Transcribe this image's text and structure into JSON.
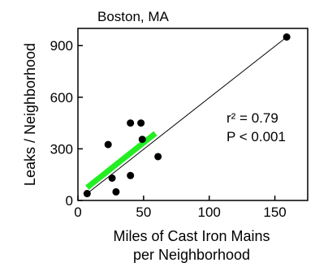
{
  "chart_data": {
    "type": "scatter",
    "title": "Boston, MA",
    "xlabel_lines": [
      "Miles of Cast Iron Mains",
      "per Neighborhood"
    ],
    "ylabel": "Leaks / Neighborhood",
    "xlim": [
      0,
      175
    ],
    "ylim": [
      0,
      1000
    ],
    "x_ticks": [
      0,
      50,
      100,
      150
    ],
    "y_ticks": [
      0,
      300,
      600,
      900
    ],
    "grid": false,
    "points": [
      {
        "x": 7,
        "y": 40
      },
      {
        "x": 23,
        "y": 325
      },
      {
        "x": 26,
        "y": 130
      },
      {
        "x": 29,
        "y": 50
      },
      {
        "x": 40,
        "y": 450
      },
      {
        "x": 40,
        "y": 145
      },
      {
        "x": 48,
        "y": 450
      },
      {
        "x": 49,
        "y": 355
      },
      {
        "x": 61,
        "y": 255
      },
      {
        "x": 159,
        "y": 950
      }
    ],
    "fit_line": {
      "x": [
        7,
        159
      ],
      "y": [
        40,
        950
      ],
      "color": "#000000"
    },
    "highlight_line": {
      "x": [
        7,
        59
      ],
      "y": [
        75,
        390
      ],
      "color": "#22ee22"
    },
    "annotations": [
      "r² = 0.79",
      "P < 0.001"
    ]
  }
}
